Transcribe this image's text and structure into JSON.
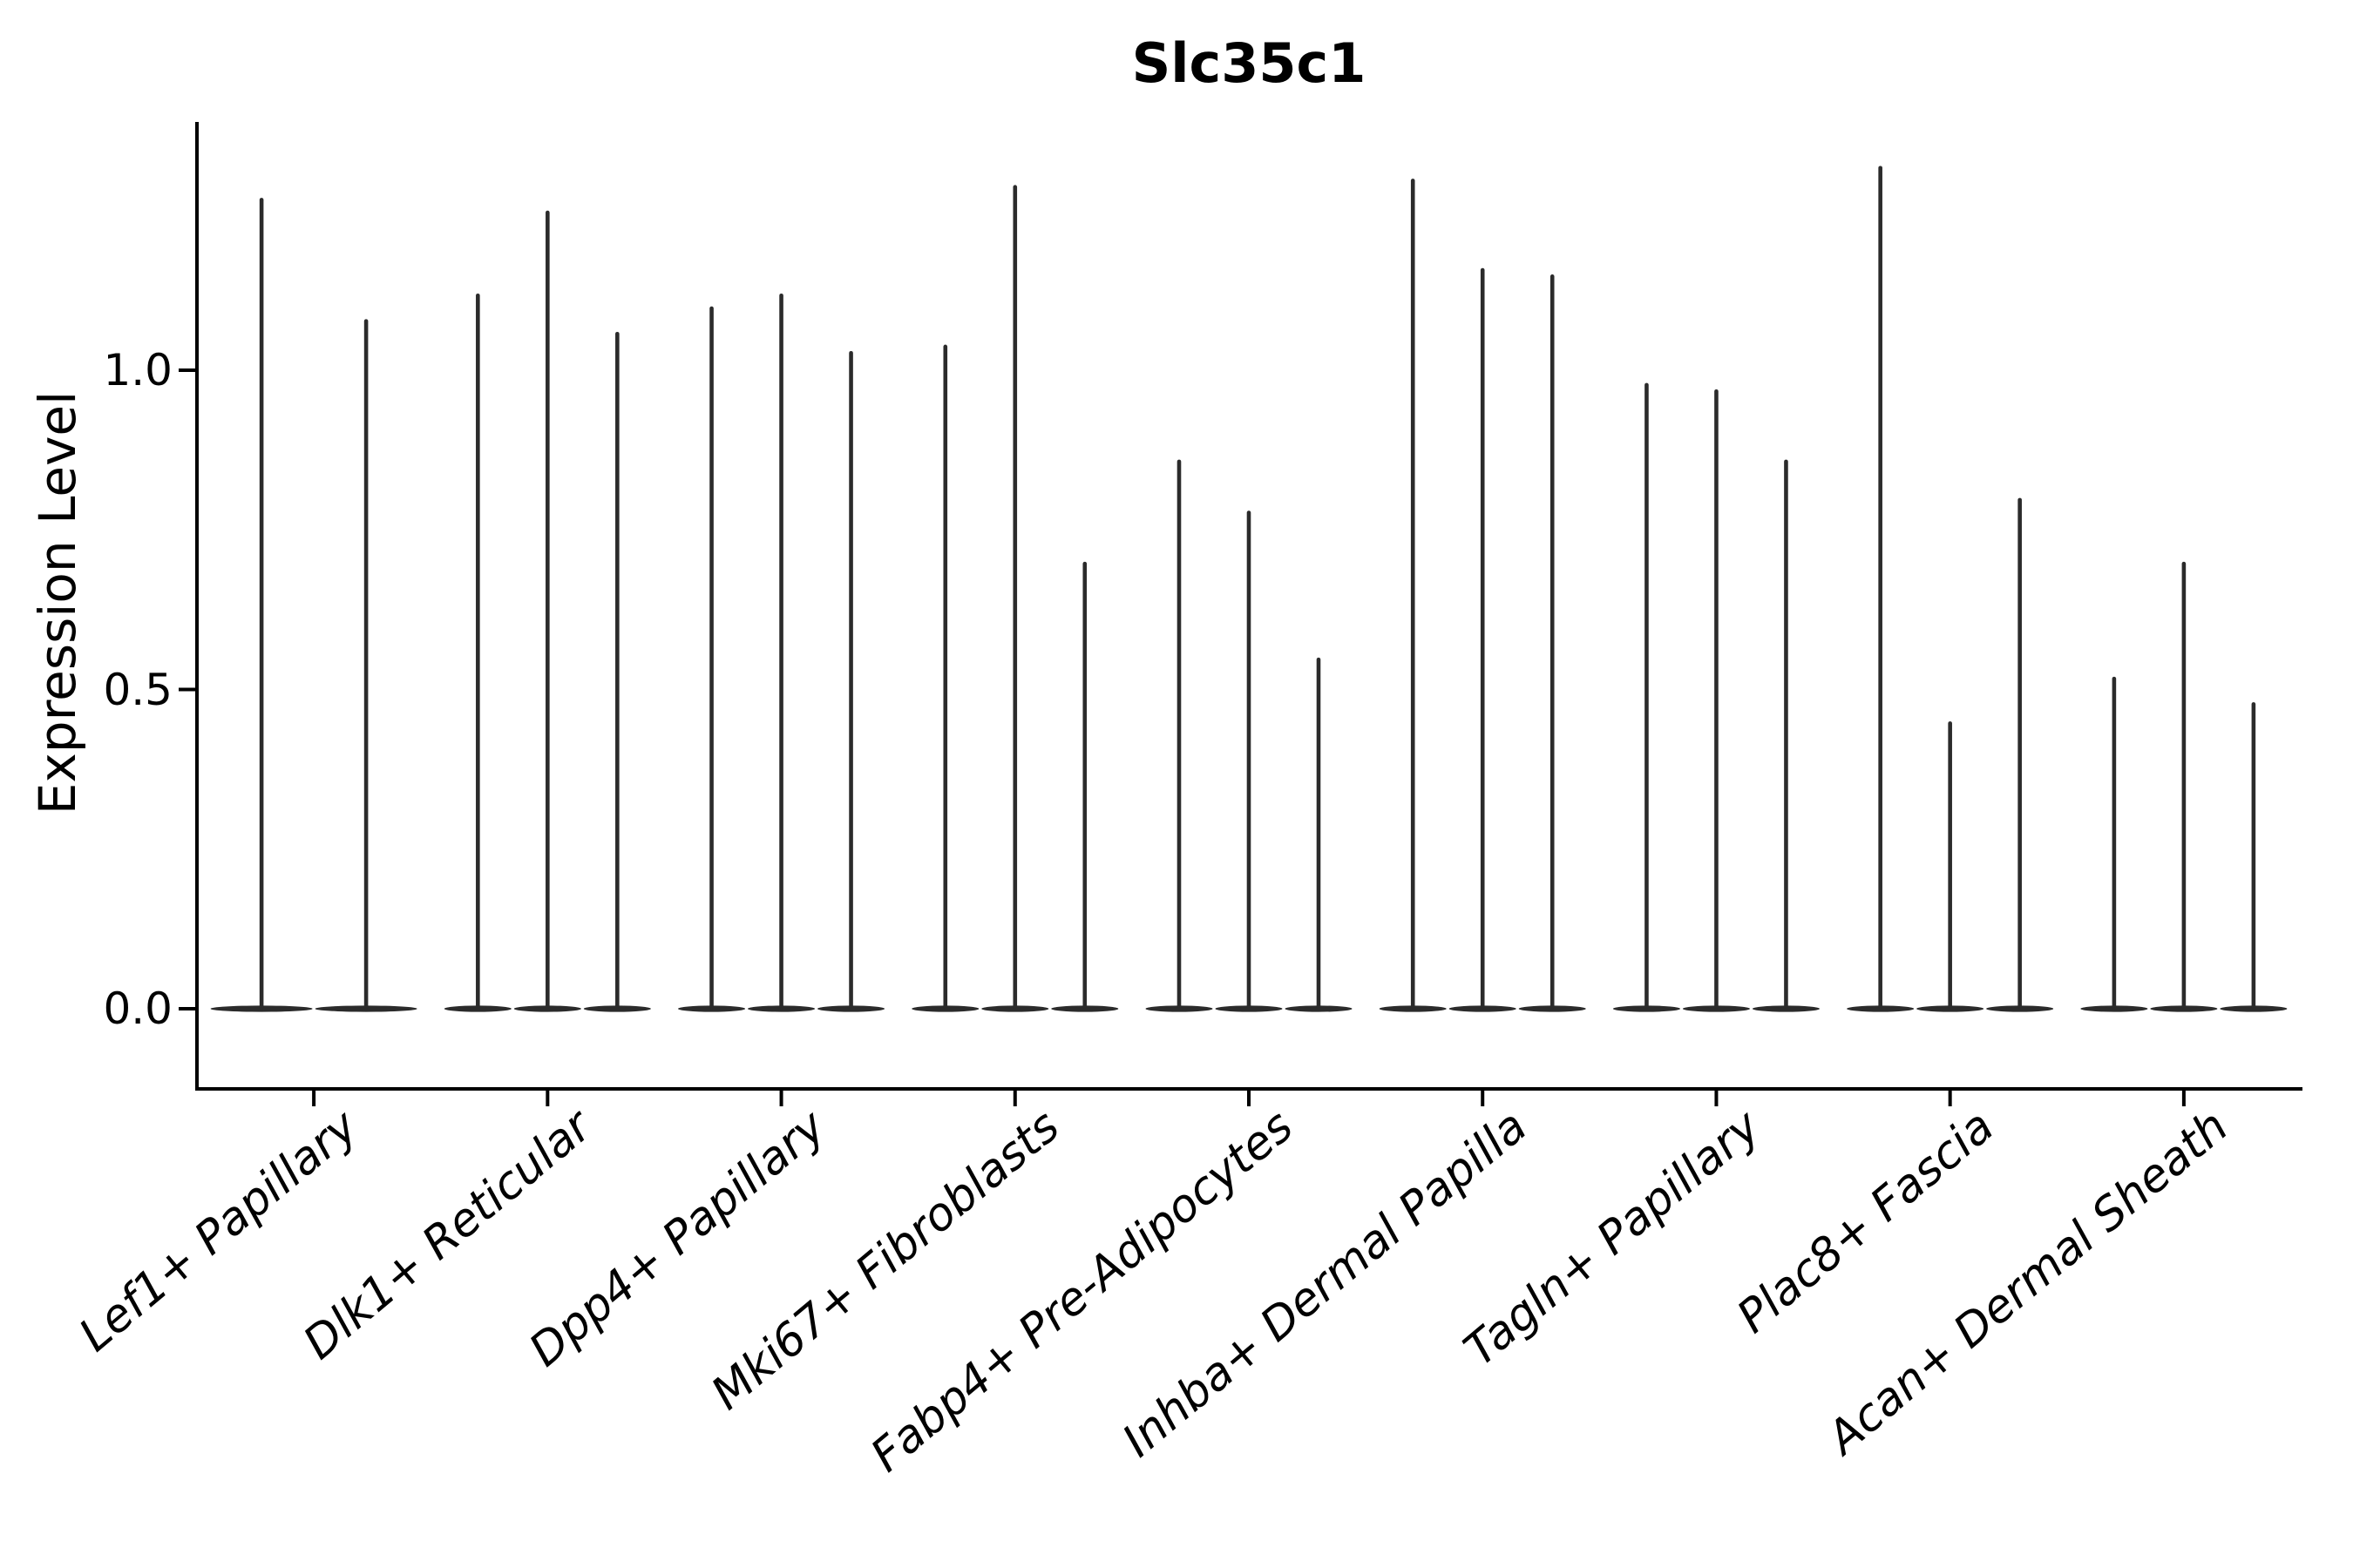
{
  "title": "Slc35c1",
  "axes": {
    "y_label": "Expression Level",
    "y_tick_labels": [
      "0.0",
      "0.5",
      "1.0"
    ]
  },
  "chart_data": {
    "type": "violin",
    "title": "Slc35c1",
    "xlabel": "",
    "ylabel": "Expression Level",
    "ylim": [
      -0.13,
      1.39
    ],
    "y_ticks": [
      0.0,
      0.5,
      1.0
    ],
    "grid": false,
    "legend_position": "none",
    "violin_style": "thin spike rising from wide flat base at 0 (bulk of cells at zero expression)",
    "groups": [
      {
        "label": "Lef1+ Papillary",
        "violin_maxima": [
          1.27,
          1.08
        ]
      },
      {
        "label": "Dlk1+ Reticular",
        "violin_maxima": [
          1.12,
          1.25,
          1.06
        ]
      },
      {
        "label": "Dpp4+ Papillary",
        "violin_maxima": [
          1.1,
          1.12,
          1.03
        ]
      },
      {
        "label": "Mki67+ Fibroblasts",
        "violin_maxima": [
          1.04,
          1.29,
          0.7
        ]
      },
      {
        "label": "Fabp4+ Pre-Adipocytes",
        "violin_maxima": [
          0.86,
          0.78,
          0.55
        ]
      },
      {
        "label": "Inhba+ Dermal Papilla",
        "violin_maxima": [
          1.3,
          1.16,
          1.15
        ]
      },
      {
        "label": "Tagln+ Papillary",
        "violin_maxima": [
          0.98,
          0.97,
          0.86
        ]
      },
      {
        "label": "Plac8+ Fascia",
        "violin_maxima": [
          1.32,
          0.45,
          0.8
        ]
      },
      {
        "label": "Acan+ Dermal Sheath",
        "violin_maxima": [
          0.52,
          0.7,
          0.48
        ]
      }
    ]
  },
  "colors": {
    "violin": "#2b2b2b",
    "axis": "#000000",
    "text": "#000000",
    "background": "#ffffff"
  }
}
